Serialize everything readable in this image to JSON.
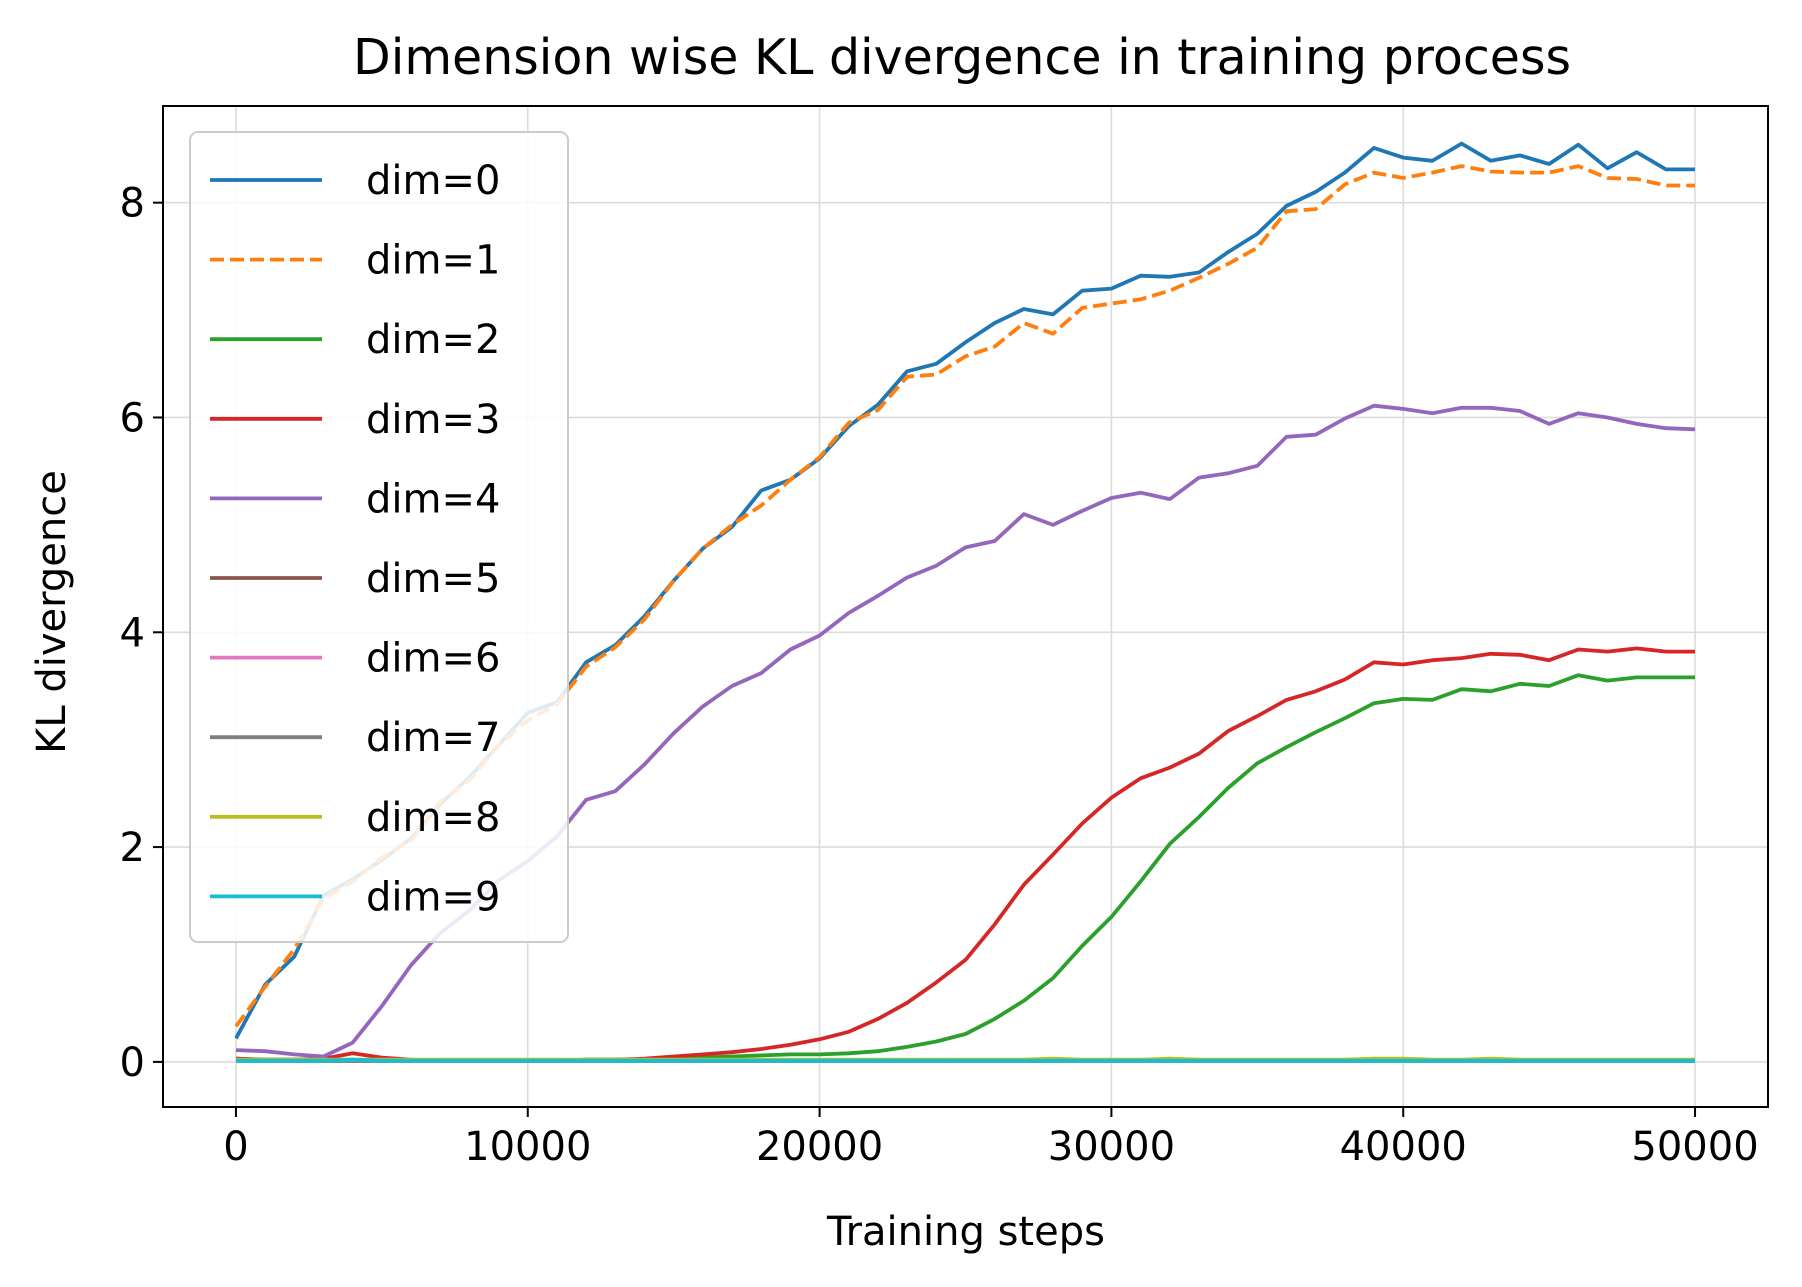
{
  "chart_data": {
    "type": "line",
    "title": "Dimension wise KL divergence in training process",
    "xlabel": "Training steps",
    "ylabel": "KL divergence",
    "xlim": [
      -2500,
      52500
    ],
    "ylim": [
      -0.42,
      8.9
    ],
    "xticks": [
      0,
      10000,
      20000,
      30000,
      40000,
      50000
    ],
    "xtick_labels": [
      "0",
      "10000",
      "20000",
      "30000",
      "40000",
      "50000"
    ],
    "yticks": [
      0,
      2,
      4,
      6,
      8
    ],
    "ytick_labels": [
      "0",
      "2",
      "4",
      "6",
      "8"
    ],
    "grid": true,
    "legend_position": "upper-left",
    "x": [
      0,
      1000,
      2000,
      3000,
      4000,
      5000,
      6000,
      7000,
      8000,
      9000,
      10000,
      11000,
      12000,
      13000,
      14000,
      15000,
      16000,
      17000,
      18000,
      19000,
      20000,
      21000,
      22000,
      23000,
      24000,
      25000,
      26000,
      27000,
      28000,
      29000,
      30000,
      31000,
      32000,
      33000,
      34000,
      35000,
      36000,
      37000,
      38000,
      39000,
      40000,
      41000,
      42000,
      43000,
      44000,
      45000,
      46000,
      47000,
      48000,
      49000,
      50000
    ],
    "series": [
      {
        "name": "dim=0",
        "color": "#1f77b4",
        "dash": "solid",
        "values": [
          0.22,
          0.72,
          0.98,
          1.55,
          1.7,
          1.88,
          2.08,
          2.4,
          2.65,
          2.95,
          3.25,
          3.35,
          3.72,
          3.88,
          4.15,
          4.48,
          4.78,
          4.98,
          5.32,
          5.42,
          5.62,
          5.92,
          6.12,
          6.43,
          6.5,
          6.7,
          6.88,
          7.01,
          6.96,
          7.18,
          7.2,
          7.32,
          7.31,
          7.35,
          7.54,
          7.71,
          7.97,
          8.1,
          8.28,
          8.51,
          8.42,
          8.39,
          8.55,
          8.39,
          8.44,
          8.36,
          8.54,
          8.32,
          8.47,
          8.31,
          8.31
        ]
      },
      {
        "name": "dim=1",
        "color": "#ff7f0e",
        "dash": "dashed",
        "values": [
          0.33,
          0.7,
          1.05,
          1.52,
          1.68,
          1.9,
          2.06,
          2.42,
          2.62,
          2.95,
          3.18,
          3.33,
          3.68,
          3.86,
          4.12,
          4.48,
          4.78,
          5.0,
          5.18,
          5.42,
          5.63,
          5.95,
          6.07,
          6.38,
          6.4,
          6.57,
          6.66,
          6.88,
          6.78,
          7.02,
          7.06,
          7.1,
          7.18,
          7.3,
          7.43,
          7.58,
          7.92,
          7.94,
          8.17,
          8.28,
          8.23,
          8.28,
          8.34,
          8.29,
          8.28,
          8.28,
          8.34,
          8.23,
          8.22,
          8.16,
          8.16
        ]
      },
      {
        "name": "dim=2",
        "color": "#2ca02c",
        "dash": "solid",
        "values": [
          0.03,
          0.02,
          0.02,
          0.01,
          0.01,
          0.01,
          0.01,
          0.01,
          0.01,
          0.01,
          0.01,
          0.01,
          0.02,
          0.02,
          0.02,
          0.03,
          0.04,
          0.05,
          0.06,
          0.07,
          0.07,
          0.08,
          0.1,
          0.14,
          0.19,
          0.26,
          0.4,
          0.57,
          0.78,
          1.08,
          1.35,
          1.68,
          2.03,
          2.28,
          2.55,
          2.78,
          2.93,
          3.07,
          3.2,
          3.34,
          3.38,
          3.37,
          3.47,
          3.45,
          3.52,
          3.5,
          3.6,
          3.55,
          3.58,
          3.58,
          3.58
        ]
      },
      {
        "name": "dim=3",
        "color": "#d62728",
        "dash": "solid",
        "values": [
          0.03,
          0.02,
          0.02,
          0.03,
          0.08,
          0.04,
          0.02,
          0.01,
          0.01,
          0.01,
          0.01,
          0.01,
          0.02,
          0.02,
          0.03,
          0.05,
          0.07,
          0.09,
          0.12,
          0.16,
          0.21,
          0.28,
          0.4,
          0.55,
          0.74,
          0.95,
          1.28,
          1.65,
          1.93,
          2.22,
          2.46,
          2.64,
          2.74,
          2.87,
          3.08,
          3.22,
          3.37,
          3.45,
          3.56,
          3.72,
          3.7,
          3.74,
          3.76,
          3.8,
          3.79,
          3.74,
          3.84,
          3.82,
          3.85,
          3.82,
          3.82
        ]
      },
      {
        "name": "dim=4",
        "color": "#9467bd",
        "dash": "solid",
        "values": [
          0.11,
          0.1,
          0.07,
          0.05,
          0.18,
          0.52,
          0.9,
          1.2,
          1.41,
          1.69,
          1.87,
          2.1,
          2.44,
          2.52,
          2.77,
          3.06,
          3.31,
          3.5,
          3.62,
          3.84,
          3.97,
          4.18,
          4.34,
          4.51,
          4.62,
          4.79,
          4.85,
          5.1,
          5.0,
          5.13,
          5.25,
          5.3,
          5.24,
          5.44,
          5.48,
          5.55,
          5.82,
          5.84,
          5.99,
          6.11,
          6.08,
          6.04,
          6.09,
          6.09,
          6.06,
          5.94,
          6.04,
          6.0,
          5.94,
          5.9,
          5.89
        ]
      },
      {
        "name": "dim=5",
        "color": "#8c564b",
        "dash": "solid",
        "values": [
          0.01,
          0.01,
          0.01,
          0.01,
          0.01,
          0.01,
          0.01,
          0.01,
          0.01,
          0.01,
          0.01,
          0.01,
          0.01,
          0.01,
          0.01,
          0.01,
          0.01,
          0.01,
          0.01,
          0.01,
          0.01,
          0.01,
          0.01,
          0.01,
          0.01,
          0.01,
          0.01,
          0.01,
          0.01,
          0.01,
          0.01,
          0.01,
          0.01,
          0.01,
          0.01,
          0.01,
          0.01,
          0.01,
          0.01,
          0.01,
          0.01,
          0.01,
          0.01,
          0.01,
          0.01,
          0.01,
          0.01,
          0.01,
          0.01,
          0.01,
          0.01
        ]
      },
      {
        "name": "dim=6",
        "color": "#e377c2",
        "dash": "solid",
        "values": [
          0.01,
          0.01,
          0.01,
          0.01,
          0.01,
          0.01,
          0.01,
          0.01,
          0.01,
          0.01,
          0.01,
          0.01,
          0.01,
          0.01,
          0.01,
          0.01,
          0.01,
          0.01,
          0.01,
          0.01,
          0.01,
          0.01,
          0.01,
          0.01,
          0.01,
          0.01,
          0.01,
          0.01,
          0.01,
          0.01,
          0.01,
          0.01,
          0.01,
          0.01,
          0.01,
          0.01,
          0.01,
          0.01,
          0.01,
          0.01,
          0.01,
          0.01,
          0.01,
          0.01,
          0.01,
          0.01,
          0.01,
          0.01,
          0.01,
          0.01,
          0.01
        ]
      },
      {
        "name": "dim=7",
        "color": "#7f7f7f",
        "dash": "solid",
        "values": [
          0.01,
          0.01,
          0.01,
          0.01,
          0.01,
          0.01,
          0.01,
          0.01,
          0.01,
          0.01,
          0.01,
          0.01,
          0.01,
          0.01,
          0.01,
          0.01,
          0.01,
          0.01,
          0.01,
          0.01,
          0.01,
          0.01,
          0.01,
          0.01,
          0.01,
          0.01,
          0.01,
          0.01,
          0.01,
          0.01,
          0.01,
          0.01,
          0.01,
          0.01,
          0.01,
          0.01,
          0.01,
          0.01,
          0.01,
          0.01,
          0.01,
          0.01,
          0.01,
          0.01,
          0.01,
          0.01,
          0.01,
          0.01,
          0.01,
          0.01,
          0.01
        ]
      },
      {
        "name": "dim=8",
        "color": "#bcbd22",
        "dash": "solid",
        "values": [
          0.02,
          0.02,
          0.02,
          0.02,
          0.02,
          0.02,
          0.02,
          0.02,
          0.02,
          0.02,
          0.02,
          0.02,
          0.02,
          0.02,
          0.02,
          0.02,
          0.02,
          0.02,
          0.02,
          0.02,
          0.02,
          0.02,
          0.02,
          0.02,
          0.02,
          0.02,
          0.02,
          0.02,
          0.03,
          0.02,
          0.02,
          0.02,
          0.03,
          0.02,
          0.02,
          0.02,
          0.02,
          0.02,
          0.02,
          0.03,
          0.03,
          0.02,
          0.02,
          0.03,
          0.02,
          0.02,
          0.02,
          0.02,
          0.02,
          0.02,
          0.02
        ]
      },
      {
        "name": "dim=9",
        "color": "#17becf",
        "dash": "solid",
        "values": [
          0.01,
          0.01,
          0.01,
          0.01,
          0.02,
          0.01,
          0.01,
          0.01,
          0.01,
          0.01,
          0.01,
          0.01,
          0.01,
          0.01,
          0.01,
          0.01,
          0.01,
          0.01,
          0.01,
          0.01,
          0.01,
          0.01,
          0.01,
          0.01,
          0.01,
          0.01,
          0.01,
          0.01,
          0.01,
          0.01,
          0.01,
          0.01,
          0.01,
          0.01,
          0.01,
          0.01,
          0.01,
          0.01,
          0.01,
          0.01,
          0.01,
          0.01,
          0.01,
          0.01,
          0.01,
          0.01,
          0.01,
          0.01,
          0.01,
          0.01,
          0.01
        ]
      }
    ]
  }
}
